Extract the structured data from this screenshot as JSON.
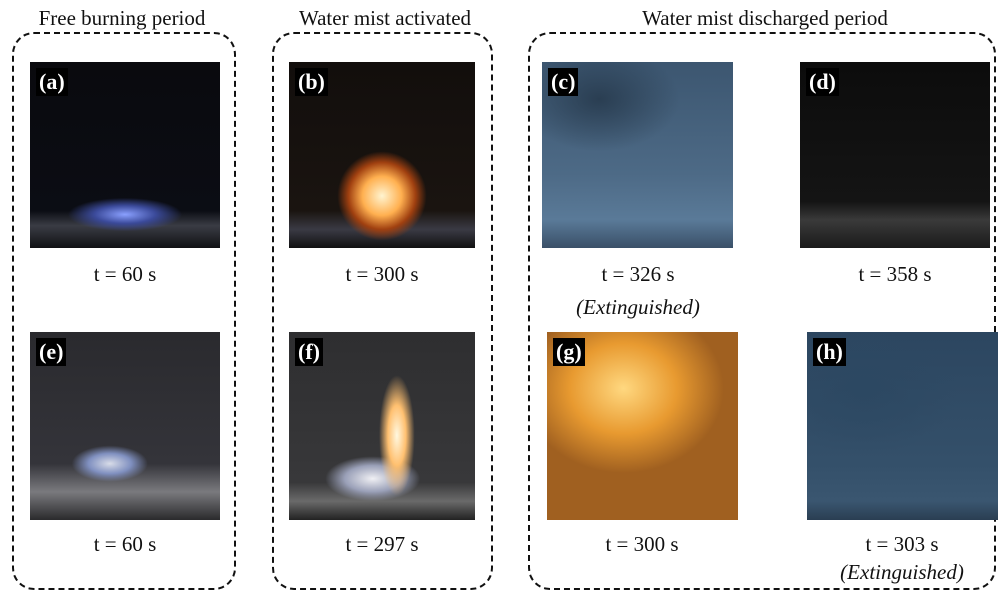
{
  "groups": [
    {
      "title": "Free burning period"
    },
    {
      "title": "Water mist activated"
    },
    {
      "title": "Water mist discharged period"
    }
  ],
  "panels": [
    {
      "label": "(a)",
      "caption": "t = 60 s"
    },
    {
      "label": "(b)",
      "caption": "t = 300 s"
    },
    {
      "label": "(c)",
      "caption": "t = 326 s",
      "note": "(Extinguished)"
    },
    {
      "label": "(d)",
      "caption": "t = 358 s"
    },
    {
      "label": "(e)",
      "caption": "t = 60 s"
    },
    {
      "label": "(f)",
      "caption": "t = 297 s"
    },
    {
      "label": "(g)",
      "caption": "t = 300 s"
    },
    {
      "label": "(h)",
      "caption": "t = 303 s",
      "note": "(Extinguished)"
    }
  ]
}
